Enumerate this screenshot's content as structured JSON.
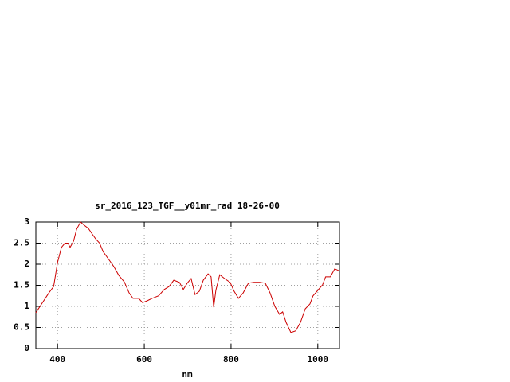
{
  "chart_data": {
    "type": "line",
    "title": "sr_2016_123_TGF__y01mr_rad 18-26-00",
    "x_label": "nm",
    "xlim": [
      350,
      1050
    ],
    "ylim": [
      0,
      3
    ],
    "xticks": [
      400,
      600,
      800,
      1000
    ],
    "yticks": [
      0,
      0.5,
      1,
      1.5,
      2,
      2.5,
      3
    ],
    "grid": true,
    "x": [
      350,
      380,
      391,
      400,
      409,
      417,
      424,
      429,
      437,
      444,
      453,
      462,
      471,
      481,
      488,
      497,
      505,
      517,
      530,
      541,
      554,
      565,
      574,
      587,
      596,
      606,
      618,
      633,
      646,
      657,
      668,
      681,
      690,
      699,
      708,
      717,
      727,
      736,
      747,
      754,
      760,
      765,
      774,
      785,
      798,
      807,
      817,
      828,
      840,
      853,
      866,
      879,
      890,
      901,
      912,
      919,
      927,
      938,
      949,
      960,
      971,
      982,
      989,
      1000,
      1011,
      1018,
      1029,
      1039,
      1048
    ],
    "series": [
      {
        "color": "#cc0000",
        "values": [
          0.85,
          1.32,
          1.47,
          2.04,
          2.4,
          2.5,
          2.5,
          2.4,
          2.55,
          2.83,
          3.0,
          2.92,
          2.85,
          2.7,
          2.6,
          2.5,
          2.3,
          2.13,
          1.94,
          1.74,
          1.58,
          1.32,
          1.19,
          1.19,
          1.09,
          1.13,
          1.19,
          1.25,
          1.4,
          1.47,
          1.62,
          1.57,
          1.4,
          1.55,
          1.66,
          1.28,
          1.36,
          1.62,
          1.77,
          1.7,
          0.98,
          1.38,
          1.75,
          1.66,
          1.57,
          1.36,
          1.19,
          1.32,
          1.55,
          1.57,
          1.57,
          1.55,
          1.32,
          1.0,
          0.81,
          0.87,
          0.62,
          0.38,
          0.42,
          0.62,
          0.94,
          1.06,
          1.25,
          1.38,
          1.51,
          1.7,
          1.7,
          1.89,
          1.85
        ]
      }
    ]
  }
}
